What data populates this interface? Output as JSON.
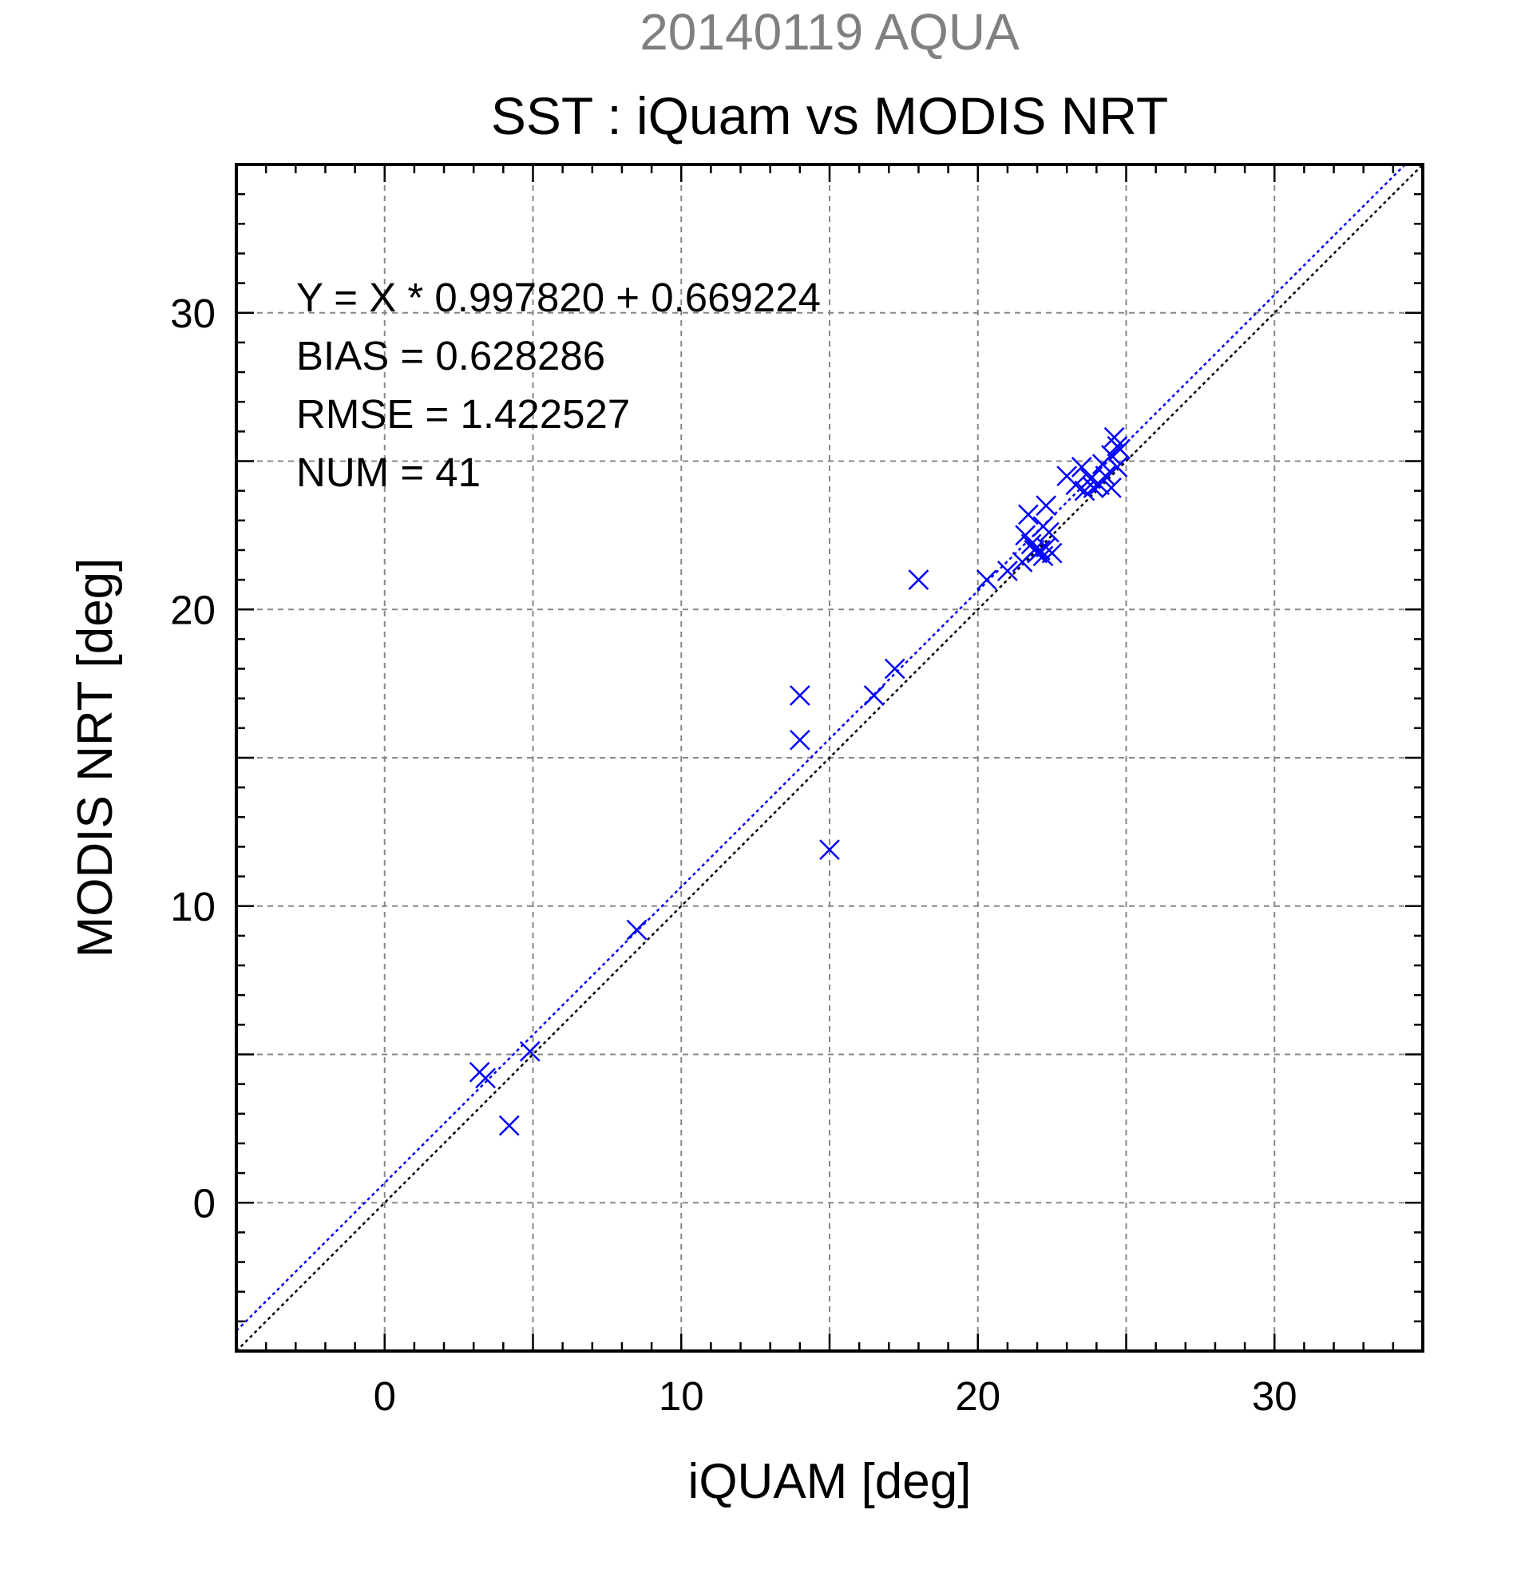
{
  "chart_data": {
    "type": "scatter",
    "subtitle": "20140119 AQUA",
    "title": "SST : iQuam vs MODIS NRT",
    "xlabel": "iQUAM [deg]",
    "ylabel": "MODIS NRT [deg]",
    "xlim": [
      -5,
      35
    ],
    "ylim": [
      -5,
      35
    ],
    "xticks": [
      0,
      10,
      20,
      30
    ],
    "yticks": [
      0,
      10,
      20,
      30
    ],
    "grid": true,
    "colors": {
      "points": "#0000ff",
      "fit_line": "#0000ff",
      "identity_line": "#000000",
      "subtitle": "#808080"
    },
    "stats_text": [
      "Y = X * 0.997820 + 0.669224",
      "BIAS = 0.628286",
      "RMSE = 1.422527",
      "NUM = 41"
    ],
    "fit": {
      "slope": 0.99782,
      "intercept": 0.669224
    },
    "identity": {
      "slope": 1,
      "intercept": 0
    },
    "points": [
      {
        "x": 3.2,
        "y": 4.4
      },
      {
        "x": 3.4,
        "y": 4.2
      },
      {
        "x": 4.2,
        "y": 2.6
      },
      {
        "x": 4.9,
        "y": 5.1
      },
      {
        "x": 8.5,
        "y": 9.2
      },
      {
        "x": 14.0,
        "y": 17.1
      },
      {
        "x": 14.0,
        "y": 15.6
      },
      {
        "x": 15.0,
        "y": 11.9
      },
      {
        "x": 16.5,
        "y": 17.1
      },
      {
        "x": 17.2,
        "y": 18.0
      },
      {
        "x": 18.0,
        "y": 21.0
      },
      {
        "x": 20.3,
        "y": 21.0
      },
      {
        "x": 21.0,
        "y": 21.3
      },
      {
        "x": 21.5,
        "y": 21.6
      },
      {
        "x": 21.6,
        "y": 22.5
      },
      {
        "x": 21.7,
        "y": 23.2
      },
      {
        "x": 21.8,
        "y": 22.2
      },
      {
        "x": 22.0,
        "y": 21.9
      },
      {
        "x": 22.1,
        "y": 22.0
      },
      {
        "x": 22.2,
        "y": 21.8
      },
      {
        "x": 22.2,
        "y": 22.8
      },
      {
        "x": 22.3,
        "y": 23.5
      },
      {
        "x": 22.3,
        "y": 22.1
      },
      {
        "x": 22.5,
        "y": 21.9
      },
      {
        "x": 23.0,
        "y": 24.5
      },
      {
        "x": 23.3,
        "y": 24.2
      },
      {
        "x": 23.5,
        "y": 24.8
      },
      {
        "x": 23.6,
        "y": 24.0
      },
      {
        "x": 23.8,
        "y": 24.4
      },
      {
        "x": 24.1,
        "y": 24.2
      },
      {
        "x": 24.3,
        "y": 24.5
      },
      {
        "x": 24.5,
        "y": 24.1
      },
      {
        "x": 24.5,
        "y": 25.2
      },
      {
        "x": 24.6,
        "y": 25.8
      },
      {
        "x": 24.7,
        "y": 25.5
      },
      {
        "x": 24.7,
        "y": 24.8
      },
      {
        "x": 24.8,
        "y": 25.4
      },
      {
        "x": 22.4,
        "y": 22.6
      },
      {
        "x": 21.9,
        "y": 22.0
      },
      {
        "x": 23.9,
        "y": 24.1
      },
      {
        "x": 24.2,
        "y": 24.9
      }
    ]
  }
}
